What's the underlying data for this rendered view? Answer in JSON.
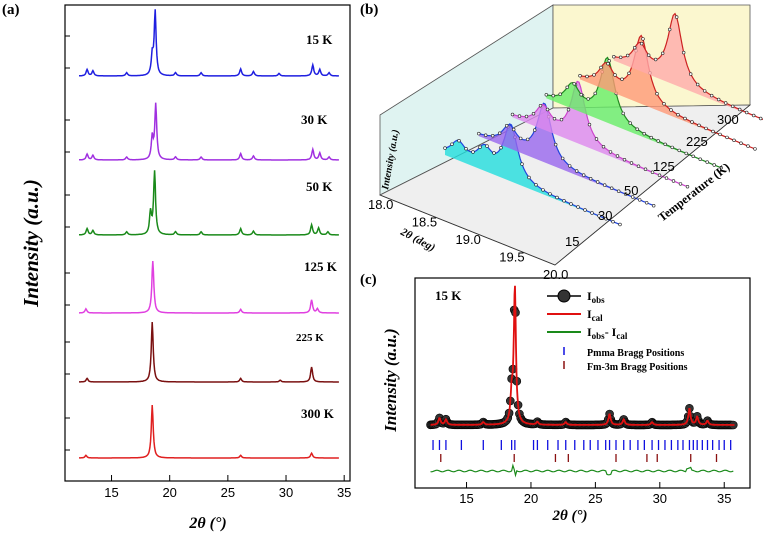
{
  "chart_data": [
    {
      "panel": "(a)",
      "type": "line",
      "title": "",
      "xlabel": "2θ (°)",
      "ylabel": "Intensity (a.u.)",
      "xlim": [
        11,
        35.5
      ],
      "xticks": [
        15,
        20,
        25,
        30,
        35
      ],
      "series": [
        {
          "name": "15 K",
          "label": "15 K",
          "color": "#1f1fe0",
          "peaks": [
            [
              12.9,
              0.1
            ],
            [
              13.4,
              0.08
            ],
            [
              16.3,
              0.05
            ],
            [
              18.5,
              0.3
            ],
            [
              18.75,
              1.0
            ],
            [
              20.5,
              0.05
            ],
            [
              22.7,
              0.05
            ],
            [
              26.1,
              0.11
            ],
            [
              27.2,
              0.07
            ],
            [
              29.4,
              0.04
            ],
            [
              32.3,
              0.17
            ],
            [
              32.9,
              0.1
            ],
            [
              33.7,
              0.05
            ]
          ]
        },
        {
          "name": "30 K",
          "label": "30 K",
          "color": "#a030e0",
          "peaks": [
            [
              12.9,
              0.1
            ],
            [
              13.4,
              0.08
            ],
            [
              16.3,
              0.05
            ],
            [
              18.5,
              0.38
            ],
            [
              18.8,
              0.95
            ],
            [
              20.5,
              0.05
            ],
            [
              22.7,
              0.05
            ],
            [
              26.1,
              0.11
            ],
            [
              27.2,
              0.07
            ],
            [
              32.3,
              0.18
            ],
            [
              32.9,
              0.12
            ],
            [
              33.7,
              0.05
            ]
          ]
        },
        {
          "name": "50 K",
          "label": "50 K",
          "color": "#1a8a1a",
          "peaks": [
            [
              12.9,
              0.1
            ],
            [
              13.4,
              0.07
            ],
            [
              16.3,
              0.05
            ],
            [
              18.35,
              0.35
            ],
            [
              18.7,
              1.0
            ],
            [
              20.5,
              0.05
            ],
            [
              22.7,
              0.05
            ],
            [
              26.1,
              0.1
            ],
            [
              27.2,
              0.06
            ],
            [
              32.2,
              0.16
            ],
            [
              32.8,
              0.11
            ],
            [
              33.6,
              0.05
            ]
          ]
        },
        {
          "name": "125 K",
          "label": "125 K",
          "color": "#e040e0",
          "peaks": [
            [
              12.8,
              0.08
            ],
            [
              18.55,
              1.0
            ],
            [
              26.1,
              0.07
            ],
            [
              32.2,
              0.25
            ],
            [
              32.7,
              0.08
            ]
          ]
        },
        {
          "name": "225 K",
          "label": "225 K",
          "color": "#7a1010",
          "peaks": [
            [
              12.9,
              0.06
            ],
            [
              18.5,
              1.0
            ],
            [
              26.1,
              0.06
            ],
            [
              29.5,
              0.03
            ],
            [
              32.2,
              0.25
            ]
          ]
        },
        {
          "name": "300 K",
          "label": "300 K",
          "color": "#e02020",
          "peaks": [
            [
              12.8,
              0.05
            ],
            [
              18.5,
              1.0
            ],
            [
              26.1,
              0.05
            ],
            [
              32.2,
              0.09
            ]
          ]
        }
      ]
    },
    {
      "panel": "(b)",
      "type": "line",
      "title": "",
      "xlabel": "2θ (deg)",
      "ylabel": "Intensity (a.u.)",
      "zlabel": "Temperature (K)",
      "xlim": [
        18.0,
        20.0
      ],
      "xticks": [
        18.0,
        18.5,
        19.0,
        19.5,
        20.0
      ],
      "zticks": [
        "15",
        "30",
        "50",
        "125",
        "225",
        "300"
      ],
      "series": [
        {
          "name": "15 K",
          "color": "#2244dd",
          "fill": "#22dddd"
        },
        {
          "name": "30 K",
          "color": "#2244dd",
          "fill": "#9966ee"
        },
        {
          "name": "50 K",
          "color": "#cc44cc",
          "fill": "#dd88ee"
        },
        {
          "name": "125 K",
          "color": "#228822",
          "fill": "#66ee66"
        },
        {
          "name": "225 K",
          "color": "#cc2222",
          "fill": "#ff9977"
        },
        {
          "name": "300 K",
          "color": "#cc2222",
          "fill": "#ffaaaa"
        }
      ]
    },
    {
      "panel": "(c)",
      "type": "line",
      "title": "15 K",
      "xlabel": "2θ (°)",
      "ylabel": "Intensity (a.u.)",
      "xlim": [
        11,
        37
      ],
      "xticks": [
        15,
        20,
        25,
        30,
        35
      ],
      "legend": [
        {
          "label": "I_obs",
          "main": "I",
          "sub": "obs",
          "color": "#000000",
          "kind": "dot"
        },
        {
          "label": "I_cal",
          "main": "I",
          "sub": "cal",
          "color": "#e01010",
          "kind": "line"
        },
        {
          "label": "I_obs- I_cal",
          "main": "I",
          "sub": "obs",
          "main2": "- I",
          "sub2": "cal",
          "color": "#1a8a1a",
          "kind": "line"
        },
        {
          "label": "Pmma Bragg Positions",
          "color": "#1010e0",
          "kind": "tick"
        },
        {
          "label": "Fm-3m Bragg Positions",
          "color": "#8a1010",
          "kind": "tick"
        }
      ],
      "pmma_bragg": [
        12.4,
        12.9,
        13.4,
        14.6,
        16.3,
        17.7,
        18.5,
        18.75,
        20.2,
        20.5,
        21.3,
        22.1,
        22.7,
        23.4,
        24.1,
        24.6,
        25.2,
        25.8,
        26.1,
        26.6,
        27.2,
        27.7,
        28.3,
        28.8,
        29.4,
        29.9,
        30.4,
        30.9,
        31.4,
        31.8,
        32.3,
        32.6,
        32.9,
        33.3,
        33.7,
        34.1,
        34.6,
        35.0,
        35.5
      ],
      "fm3m_bragg": [
        13.0,
        18.7,
        21.9,
        22.9,
        26.6,
        29.0,
        29.8,
        32.4,
        34.4
      ],
      "peaks": [
        [
          12.9,
          0.05
        ],
        [
          13.4,
          0.04
        ],
        [
          16.3,
          0.02
        ],
        [
          18.5,
          0.2
        ],
        [
          18.75,
          1.0
        ],
        [
          20.5,
          0.02
        ],
        [
          22.7,
          0.02
        ],
        [
          26.1,
          0.08
        ],
        [
          27.2,
          0.04
        ],
        [
          29.4,
          0.02
        ],
        [
          32.3,
          0.12
        ],
        [
          32.9,
          0.06
        ],
        [
          33.7,
          0.03
        ]
      ]
    }
  ]
}
